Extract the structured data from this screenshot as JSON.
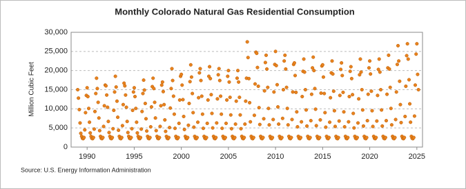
{
  "chart_data": {
    "type": "scatter",
    "title": "Monthly Colorado Natural Gas Residential Consumption",
    "y_label": "Million Cubic Feet",
    "source": "Source: U.S. Energy Information Administration",
    "xlim": [
      1988.3,
      2025.6
    ],
    "xticks": [
      1990,
      1995,
      2000,
      2005,
      2010,
      2015,
      2020,
      2025
    ],
    "ylim": [
      0,
      30000
    ],
    "yticks": [
      0,
      {
        "value": 5000,
        "label": "5,000"
      },
      {
        "value": 10000,
        "label": "10,000"
      },
      {
        "value": 15000,
        "label": "15,000"
      },
      {
        "value": 20000,
        "label": "20,000"
      },
      {
        "value": 25000,
        "label": "25,000"
      },
      {
        "value": 30000,
        "label": "30,000"
      }
    ],
    "grid": true,
    "color": "#e8821e",
    "x": [
      1989,
      1989.08,
      1989.17,
      1989.25,
      1989.33,
      1989.42,
      1989.5,
      1989.58,
      1989.67,
      1989.75,
      1989.83,
      1989.92,
      1990,
      1990.08,
      1990.17,
      1990.25,
      1990.33,
      1990.42,
      1990.5,
      1990.58,
      1990.67,
      1990.75,
      1990.83,
      1990.92,
      1991,
      1991.08,
      1991.17,
      1991.25,
      1991.33,
      1991.42,
      1991.5,
      1991.58,
      1991.67,
      1991.75,
      1991.83,
      1991.92,
      1992,
      1992.08,
      1992.17,
      1992.25,
      1992.33,
      1992.42,
      1992.5,
      1992.58,
      1992.67,
      1992.75,
      1992.83,
      1992.92,
      1993,
      1993.08,
      1993.17,
      1993.25,
      1993.33,
      1993.42,
      1993.5,
      1993.58,
      1993.67,
      1993.75,
      1993.83,
      1993.92,
      1994,
      1994.08,
      1994.17,
      1994.25,
      1994.33,
      1994.42,
      1994.5,
      1994.58,
      1994.67,
      1994.75,
      1994.83,
      1994.92,
      1995,
      1995.08,
      1995.17,
      1995.25,
      1995.33,
      1995.42,
      1995.5,
      1995.58,
      1995.67,
      1995.75,
      1995.83,
      1995.92,
      1996,
      1996.08,
      1996.17,
      1996.25,
      1996.33,
      1996.42,
      1996.5,
      1996.58,
      1996.67,
      1996.75,
      1996.83,
      1996.92,
      1997,
      1997.08,
      1997.17,
      1997.25,
      1997.33,
      1997.42,
      1997.5,
      1997.58,
      1997.67,
      1997.75,
      1997.83,
      1997.92,
      1998,
      1998.08,
      1998.17,
      1998.25,
      1998.33,
      1998.42,
      1998.5,
      1998.58,
      1998.67,
      1998.75,
      1998.83,
      1998.92,
      1999,
      1999.08,
      1999.17,
      1999.25,
      1999.33,
      1999.42,
      1999.5,
      1999.58,
      1999.67,
      1999.75,
      1999.83,
      1999.92,
      2000,
      2000.08,
      2000.17,
      2000.25,
      2000.33,
      2000.42,
      2000.5,
      2000.58,
      2000.67,
      2000.75,
      2000.83,
      2000.92,
      2001,
      2001.08,
      2001.17,
      2001.25,
      2001.33,
      2001.42,
      2001.5,
      2001.58,
      2001.67,
      2001.75,
      2001.83,
      2001.92,
      2002,
      2002.08,
      2002.17,
      2002.25,
      2002.33,
      2002.42,
      2002.5,
      2002.58,
      2002.67,
      2002.75,
      2002.83,
      2002.92,
      2003,
      2003.08,
      2003.17,
      2003.25,
      2003.33,
      2003.42,
      2003.5,
      2003.58,
      2003.67,
      2003.75,
      2003.83,
      2003.92,
      2004,
      2004.08,
      2004.17,
      2004.25,
      2004.33,
      2004.42,
      2004.5,
      2004.58,
      2004.67,
      2004.75,
      2004.83,
      2004.92,
      2005,
      2005.08,
      2005.17,
      2005.25,
      2005.33,
      2005.42,
      2005.5,
      2005.58,
      2005.67,
      2005.75,
      2005.83,
      2005.92,
      2006,
      2006.08,
      2006.17,
      2006.25,
      2006.33,
      2006.42,
      2006.5,
      2006.58,
      2006.67,
      2006.75,
      2006.83,
      2006.92,
      2007,
      2007.08,
      2007.17,
      2007.25,
      2007.33,
      2007.42,
      2007.5,
      2007.58,
      2007.67,
      2007.75,
      2007.83,
      2007.92,
      2008,
      2008.08,
      2008.17,
      2008.25,
      2008.33,
      2008.42,
      2008.5,
      2008.58,
      2008.67,
      2008.75,
      2008.83,
      2008.92,
      2009,
      2009.08,
      2009.17,
      2009.25,
      2009.33,
      2009.42,
      2009.5,
      2009.58,
      2009.67,
      2009.75,
      2009.83,
      2009.92,
      2010,
      2010.08,
      2010.17,
      2010.25,
      2010.33,
      2010.42,
      2010.5,
      2010.58,
      2010.67,
      2010.75,
      2010.83,
      2010.92,
      2011,
      2011.08,
      2011.17,
      2011.25,
      2011.33,
      2011.42,
      2011.5,
      2011.58,
      2011.67,
      2011.75,
      2011.83,
      2011.92,
      2012,
      2012.08,
      2012.17,
      2012.25,
      2012.33,
      2012.42,
      2012.5,
      2012.58,
      2012.67,
      2012.75,
      2012.83,
      2012.92,
      2013,
      2013.08,
      2013.17,
      2013.25,
      2013.33,
      2013.42,
      2013.5,
      2013.58,
      2013.67,
      2013.75,
      2013.83,
      2013.92,
      2014,
      2014.08,
      2014.17,
      2014.25,
      2014.33,
      2014.42,
      2014.5,
      2014.58,
      2014.67,
      2014.75,
      2014.83,
      2014.92,
      2015,
      2015.08,
      2015.17,
      2015.25,
      2015.33,
      2015.42,
      2015.5,
      2015.58,
      2015.67,
      2015.75,
      2015.83,
      2015.92,
      2016,
      2016.08,
      2016.17,
      2016.25,
      2016.33,
      2016.42,
      2016.5,
      2016.58,
      2016.67,
      2016.75,
      2016.83,
      2016.92,
      2017,
      2017.08,
      2017.17,
      2017.25,
      2017.33,
      2017.42,
      2017.5,
      2017.58,
      2017.67,
      2017.75,
      2017.83,
      2017.92,
      2018,
      2018.08,
      2018.17,
      2018.25,
      2018.33,
      2018.42,
      2018.5,
      2018.58,
      2018.67,
      2018.75,
      2018.83,
      2018.92,
      2019,
      2019.08,
      2019.17,
      2019.25,
      2019.33,
      2019.42,
      2019.5,
      2019.58,
      2019.67,
      2019.75,
      2019.83,
      2019.92,
      2020,
      2020.08,
      2020.17,
      2020.25,
      2020.33,
      2020.42,
      2020.5,
      2020.58,
      2020.67,
      2020.75,
      2020.83,
      2020.92,
      2021,
      2021.08,
      2021.17,
      2021.25,
      2021.33,
      2021.42,
      2021.5,
      2021.58,
      2021.67,
      2021.75,
      2021.83,
      2021.92,
      2022,
      2022.08,
      2022.17,
      2022.25,
      2022.33,
      2022.42,
      2022.5,
      2022.58,
      2022.67,
      2022.75,
      2022.83,
      2022.92,
      2023,
      2023.08,
      2023.17,
      2023.25,
      2023.33,
      2023.42,
      2023.5,
      2023.58,
      2023.67,
      2023.75,
      2023.83,
      2023.92,
      2024,
      2024.08,
      2024.17,
      2024.25,
      2024.33,
      2024.42,
      2024.5,
      2024.58,
      2024.67,
      2024.75,
      2024.83,
      2024.92,
      2025,
      2025.08,
      2025.17
    ],
    "values": [
      15000,
      12800,
      9800,
      6300,
      3600,
      2800,
      2300,
      2200,
      2500,
      4500,
      9000,
      13500,
      15500,
      13200,
      10100,
      6500,
      3700,
      2800,
      2300,
      2200,
      2500,
      4700,
      9300,
      14000,
      18000,
      15300,
      11700,
      7600,
      4300,
      2800,
      2300,
      2200,
      2500,
      5400,
      10800,
      16200,
      16000,
      13600,
      10400,
      6700,
      3800,
      2800,
      2300,
      2200,
      2500,
      4800,
      9600,
      14400,
      18500,
      15700,
      12000,
      7800,
      4400,
      2800,
      2300,
      2200,
      2500,
      5600,
      11100,
      16700,
      16000,
      13600,
      10400,
      6700,
      3800,
      2800,
      2300,
      2200,
      2500,
      4800,
      9600,
      14400,
      15500,
      13200,
      10100,
      6500,
      3700,
      2800,
      2300,
      2200,
      2500,
      4700,
      9300,
      14000,
      17500,
      14900,
      11400,
      7400,
      4200,
      2800,
      2300,
      2200,
      2500,
      5300,
      10500,
      15800,
      18000,
      15300,
      11700,
      7600,
      4300,
      2800,
      2300,
      2200,
      2500,
      5400,
      10800,
      16200,
      17000,
      14500,
      11100,
      7100,
      4100,
      2800,
      2300,
      2200,
      2500,
      5100,
      10200,
      15300,
      20500,
      17400,
      13300,
      8600,
      4900,
      2800,
      2300,
      2200,
      2500,
      6200,
      12300,
      18500,
      19000,
      16200,
      12400,
      8000,
      4600,
      2800,
      2300,
      2200,
      2500,
      5700,
      11400,
      17100,
      21500,
      18300,
      14000,
      9000,
      5200,
      2800,
      2300,
      2200,
      2500,
      6500,
      12900,
      19400,
      20500,
      17400,
      13300,
      8600,
      4900,
      2800,
      2300,
      2200,
      2500,
      6200,
      12300,
      18500,
      21000,
      17900,
      13700,
      8800,
      5000,
      2800,
      2300,
      2200,
      2500,
      6300,
      12600,
      18900,
      20500,
      17400,
      13300,
      8600,
      4900,
      2800,
      2300,
      2200,
      2500,
      6200,
      12300,
      18500,
      20000,
      17000,
      13000,
      8400,
      4800,
      2800,
      2300,
      2200,
      2500,
      6000,
      12000,
      18000,
      20000,
      17000,
      13000,
      8400,
      4800,
      2800,
      2300,
      2200,
      2500,
      6000,
      12000,
      18000,
      27500,
      23400,
      17900,
      11600,
      6600,
      2800,
      2300,
      2200,
      2500,
      8300,
      16500,
      24800,
      24500,
      20800,
      15900,
      10300,
      5900,
      2800,
      2300,
      2200,
      2500,
      7400,
      14700,
      22100,
      24000,
      20400,
      15600,
      10100,
      5800,
      2800,
      2300,
      2200,
      2500,
      7200,
      14400,
      21600,
      25000,
      21300,
      16300,
      10500,
      6000,
      2800,
      2300,
      2200,
      2500,
      7500,
      15000,
      22500,
      24000,
      20400,
      15600,
      10100,
      5800,
      2800,
      2300,
      2200,
      2500,
      7200,
      14400,
      21600,
      22000,
      18700,
      14300,
      9200,
      5300,
      2800,
      2300,
      2200,
      2500,
      6600,
      13200,
      19800,
      23000,
      19600,
      15000,
      9700,
      5500,
      2800,
      2300,
      2200,
      2500,
      6900,
      13800,
      20700,
      23500,
      20000,
      15300,
      9900,
      5600,
      2800,
      2300,
      2200,
      2500,
      7100,
      14100,
      21200,
      21500,
      18300,
      14000,
      9000,
      5200,
      2800,
      2300,
      2200,
      2500,
      6500,
      12900,
      19400,
      22500,
      19100,
      14600,
      9500,
      5400,
      2800,
      2300,
      2200,
      2500,
      6800,
      13500,
      20300,
      22000,
      18700,
      14300,
      9200,
      5300,
      2800,
      2300,
      2200,
      2500,
      6600,
      13200,
      19800,
      21000,
      17900,
      13700,
      8800,
      5000,
      2800,
      2300,
      2200,
      2500,
      6300,
      12600,
      18900,
      23000,
      19600,
      15000,
      9700,
      5500,
      2800,
      2300,
      2200,
      2500,
      6900,
      13800,
      20700,
      22500,
      19100,
      14600,
      9500,
      5400,
      2800,
      2300,
      2200,
      2500,
      6800,
      13500,
      20300,
      23000,
      19600,
      15000,
      9700,
      5500,
      2800,
      2300,
      2200,
      2500,
      6900,
      13800,
      20700,
      24000,
      20400,
      15600,
      10100,
      5800,
      2800,
      2300,
      2200,
      2500,
      7200,
      14400,
      21600,
      26500,
      22500,
      17200,
      11100,
      6400,
      2800,
      2300,
      2200,
      2500,
      8000,
      15900,
      23900,
      27000,
      23000,
      17600,
      11300,
      6500,
      2800,
      2300,
      2200,
      2500,
      8100,
      16200,
      24300,
      27000,
      19000,
      15000
    ]
  }
}
